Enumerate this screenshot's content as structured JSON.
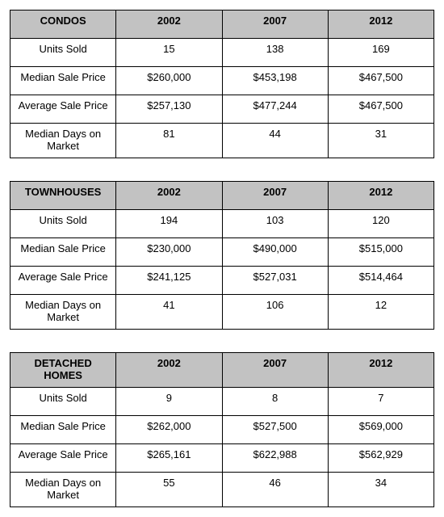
{
  "colors": {
    "header_bg": "#c2c2c2",
    "border": "#000000",
    "text": "#000000",
    "background": "#ffffff"
  },
  "typography": {
    "font_family": "Arial, Helvetica, sans-serif",
    "body_size_pt": 10,
    "header_weight": "bold"
  },
  "tables": [
    {
      "title": "CONDOS",
      "years": [
        "2002",
        "2007",
        "2012"
      ],
      "rows": [
        {
          "label": "Units Sold",
          "values": [
            "15",
            "138",
            "169"
          ]
        },
        {
          "label": "Median Sale Price",
          "values": [
            "$260,000",
            "$453,198",
            "$467,500"
          ]
        },
        {
          "label": "Average Sale Price",
          "values": [
            "$257,130",
            "$477,244",
            "$467,500"
          ]
        },
        {
          "label": "Median Days on Market",
          "values": [
            "81",
            "44",
            "31"
          ]
        }
      ]
    },
    {
      "title": "TOWNHOUSES",
      "years": [
        "2002",
        "2007",
        "2012"
      ],
      "rows": [
        {
          "label": "Units Sold",
          "values": [
            "194",
            "103",
            "120"
          ]
        },
        {
          "label": "Median Sale Price",
          "values": [
            "$230,000",
            "$490,000",
            "$515,000"
          ]
        },
        {
          "label": "Average Sale Price",
          "values": [
            "$241,125",
            "$527,031",
            "$514,464"
          ]
        },
        {
          "label": "Median Days on Market",
          "values": [
            "41",
            "106",
            "12"
          ]
        }
      ]
    },
    {
      "title": "DETACHED HOMES",
      "years": [
        "2002",
        "2007",
        "2012"
      ],
      "rows": [
        {
          "label": "Units Sold",
          "values": [
            "9",
            "8",
            "7"
          ]
        },
        {
          "label": "Median Sale Price",
          "values": [
            "$262,000",
            "$527,500",
            "$569,000"
          ]
        },
        {
          "label": "Average Sale Price",
          "values": [
            "$265,161",
            "$622,988",
            "$562,929"
          ]
        },
        {
          "label": "Median Days on Market",
          "values": [
            "55",
            "46",
            "34"
          ]
        }
      ]
    }
  ]
}
